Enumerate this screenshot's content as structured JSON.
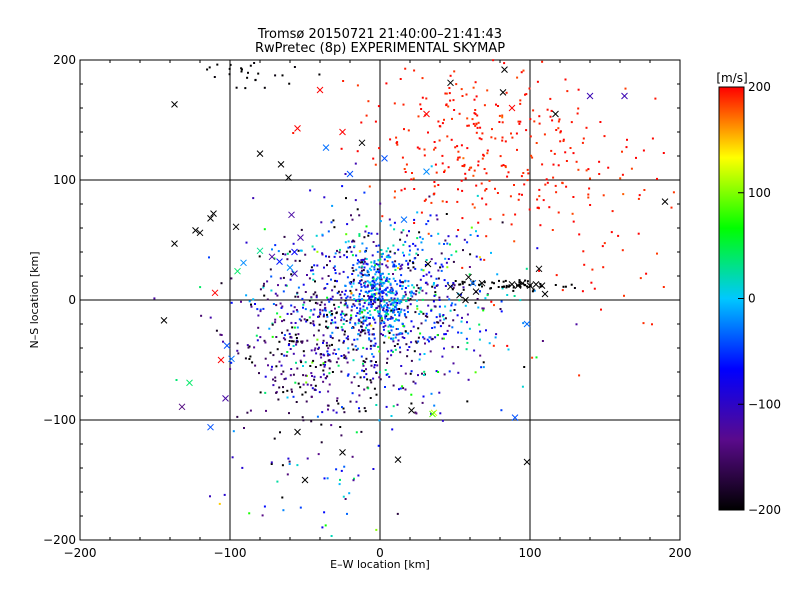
{
  "chart_data": {
    "type": "scatter",
    "title": "Tromsø 20150721 21:40:00–21:41:43",
    "subtitle": "RwPretec (8p) EXPERIMENTAL SKYMAP",
    "xlabel": "E–W location [km]",
    "ylabel": "N–S location [km]",
    "xlim": [
      -200,
      200
    ],
    "ylim": [
      -200,
      200
    ],
    "xticks": [
      -200,
      -100,
      0,
      100,
      200
    ],
    "yticks": [
      -200,
      -100,
      0,
      100,
      200
    ],
    "grid": true,
    "colorbar": {
      "label": "[m/s]",
      "range": [
        -200,
        200
      ],
      "ticks": [
        200,
        100,
        0,
        -100,
        -200
      ],
      "colormap": [
        "#000000",
        "#5a0a8c",
        "#0000ff",
        "#00c8ff",
        "#00ff00",
        "#ffff00",
        "#ff0000"
      ]
    },
    "points_x_marker": [
      {
        "x": -137,
        "y": 163,
        "v": -200
      },
      {
        "x": -80,
        "y": 122,
        "v": -200
      },
      {
        "x": 47,
        "y": 181,
        "v": -200
      },
      {
        "x": 83,
        "y": 192,
        "v": -200
      },
      {
        "x": -12,
        "y": 131,
        "v": -200
      },
      {
        "x": 82,
        "y": 173,
        "v": -200
      },
      {
        "x": 117,
        "y": 155,
        "v": -200
      },
      {
        "x": -66,
        "y": 113,
        "v": -200
      },
      {
        "x": -61,
        "y": 102,
        "v": -200
      },
      {
        "x": 190,
        "y": 82,
        "v": -200
      },
      {
        "x": -113,
        "y": 68,
        "v": -200
      },
      {
        "x": -111,
        "y": 72,
        "v": -200
      },
      {
        "x": -96,
        "y": 61,
        "v": -200
      },
      {
        "x": -123,
        "y": 58,
        "v": -200
      },
      {
        "x": -120,
        "y": 56,
        "v": -200
      },
      {
        "x": -137,
        "y": 47,
        "v": -200
      },
      {
        "x": 32,
        "y": 30,
        "v": -200
      },
      {
        "x": 59,
        "y": 19,
        "v": -200
      },
      {
        "x": 68,
        "y": 14,
        "v": -200
      },
      {
        "x": 88,
        "y": 13,
        "v": -200
      },
      {
        "x": 92,
        "y": 12,
        "v": -200
      },
      {
        "x": 95,
        "y": 14,
        "v": -200
      },
      {
        "x": 100,
        "y": 12,
        "v": -200
      },
      {
        "x": 104,
        "y": 13,
        "v": -200
      },
      {
        "x": 108,
        "y": 12,
        "v": -200
      },
      {
        "x": 106,
        "y": 26,
        "v": -200
      },
      {
        "x": 110,
        "y": 5,
        "v": -200
      },
      {
        "x": 64,
        "y": 7,
        "v": -200
      },
      {
        "x": 47,
        "y": 11,
        "v": -200
      },
      {
        "x": 53,
        "y": 4,
        "v": -200
      },
      {
        "x": 57,
        "y": 0,
        "v": -200
      },
      {
        "x": -144,
        "y": -17,
        "v": -200
      },
      {
        "x": -55,
        "y": -110,
        "v": -200
      },
      {
        "x": -25,
        "y": -127,
        "v": -200
      },
      {
        "x": -50,
        "y": -150,
        "v": -200
      },
      {
        "x": 12,
        "y": -133,
        "v": -200
      },
      {
        "x": 98,
        "y": -135,
        "v": -200
      },
      {
        "x": 21,
        "y": -92,
        "v": -200
      },
      {
        "x": 36,
        "y": -94,
        "v": 120
      },
      {
        "x": -110,
        "y": 6,
        "v": 200
      },
      {
        "x": -106,
        "y": -50,
        "v": 200
      },
      {
        "x": -40,
        "y": 175,
        "v": 200
      },
      {
        "x": -55,
        "y": 143,
        "v": 200
      },
      {
        "x": -25,
        "y": 140,
        "v": 200
      },
      {
        "x": 31,
        "y": 155,
        "v": 200
      },
      {
        "x": 88,
        "y": 160,
        "v": 200
      },
      {
        "x": -80,
        "y": 41,
        "v": 30
      },
      {
        "x": -95,
        "y": 24,
        "v": 40
      },
      {
        "x": -127,
        "y": -69,
        "v": 40
      },
      {
        "x": -59,
        "y": 71,
        "v": -120
      },
      {
        "x": -53,
        "y": 52,
        "v": -120
      },
      {
        "x": -72,
        "y": 36,
        "v": -120
      },
      {
        "x": -132,
        "y": -89,
        "v": -140
      },
      {
        "x": -103,
        "y": -82,
        "v": -120
      },
      {
        "x": 140,
        "y": 170,
        "v": -110
      },
      {
        "x": 163,
        "y": 170,
        "v": -110
      },
      {
        "x": -57,
        "y": 22,
        "v": -110
      },
      {
        "x": -67,
        "y": 32,
        "v": -60
      },
      {
        "x": -57,
        "y": 40,
        "v": -70
      },
      {
        "x": -113,
        "y": -106,
        "v": -40
      },
      {
        "x": -102,
        "y": -38,
        "v": -40
      },
      {
        "x": -99,
        "y": -49,
        "v": -30
      },
      {
        "x": -20,
        "y": 105,
        "v": -40
      },
      {
        "x": 3,
        "y": 118,
        "v": -40
      },
      {
        "x": 31,
        "y": 107,
        "v": -20
      },
      {
        "x": -36,
        "y": 127,
        "v": -30
      },
      {
        "x": 16,
        "y": 67,
        "v": -30
      },
      {
        "x": 62,
        "y": 14,
        "v": -30
      },
      {
        "x": 35,
        "y": -95,
        "v": 90
      },
      {
        "x": 90,
        "y": -98,
        "v": -40
      },
      {
        "x": 98,
        "y": -20,
        "v": -30
      },
      {
        "x": -60,
        "y": 27,
        "v": -20
      },
      {
        "x": -91,
        "y": 31,
        "v": -20
      }
    ],
    "clusters": [
      {
        "cx": 0,
        "cy": -5,
        "sx": 40,
        "sy": 40,
        "n": 900,
        "vmean": -80,
        "vsd": 80
      },
      {
        "cx": 0,
        "cy": 5,
        "sx": 10,
        "sy": 18,
        "n": 300,
        "vmean": -30,
        "vsd": 40
      },
      {
        "cx": -45,
        "cy": -40,
        "sx": 25,
        "sy": 35,
        "n": 300,
        "vmean": -160,
        "vsd": 40
      },
      {
        "cx": 65,
        "cy": 130,
        "sx": 40,
        "sy": 35,
        "n": 280,
        "vmean": 195,
        "vsd": 8
      },
      {
        "cx": 130,
        "cy": 80,
        "sx": 40,
        "sy": 50,
        "n": 100,
        "vmean": 195,
        "vsd": 8
      },
      {
        "cx": -90,
        "cy": 190,
        "sx": 20,
        "sy": 8,
        "n": 30,
        "vmean": -200,
        "vsd": 3
      },
      {
        "cx": -60,
        "cy": -160,
        "sx": 40,
        "sy": 25,
        "n": 40,
        "vmean": -60,
        "vsd": 80
      },
      {
        "cx": 85,
        "cy": 12,
        "sx": 20,
        "sy": 3,
        "n": 60,
        "vmean": -200,
        "vsd": 2
      }
    ]
  }
}
